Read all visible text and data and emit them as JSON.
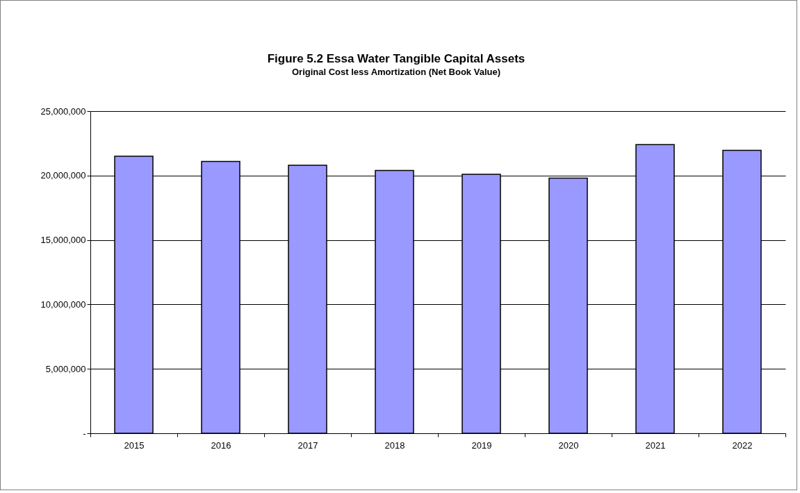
{
  "chart_data": {
    "type": "bar",
    "title": "Figure 5.2 Essa Water Tangible Capital Assets",
    "subtitle": "Original Cost less Amortization (Net Book Value)",
    "categories": [
      "2015",
      "2016",
      "2017",
      "2018",
      "2019",
      "2020",
      "2021",
      "2022"
    ],
    "values": [
      21500000,
      21100000,
      20800000,
      20400000,
      20100000,
      19800000,
      22400000,
      21950000
    ],
    "color": "#9999ff",
    "ylim": [
      0,
      25000000
    ],
    "yticks": [
      {
        "value": 0,
        "label": "-"
      },
      {
        "value": 5000000,
        "label": "5,000,000"
      },
      {
        "value": 10000000,
        "label": "10,000,000"
      },
      {
        "value": 15000000,
        "label": "15,000,000"
      },
      {
        "value": 20000000,
        "label": "20,000,000"
      },
      {
        "value": 25000000,
        "label": "25,000,000"
      }
    ],
    "grid": "y"
  }
}
